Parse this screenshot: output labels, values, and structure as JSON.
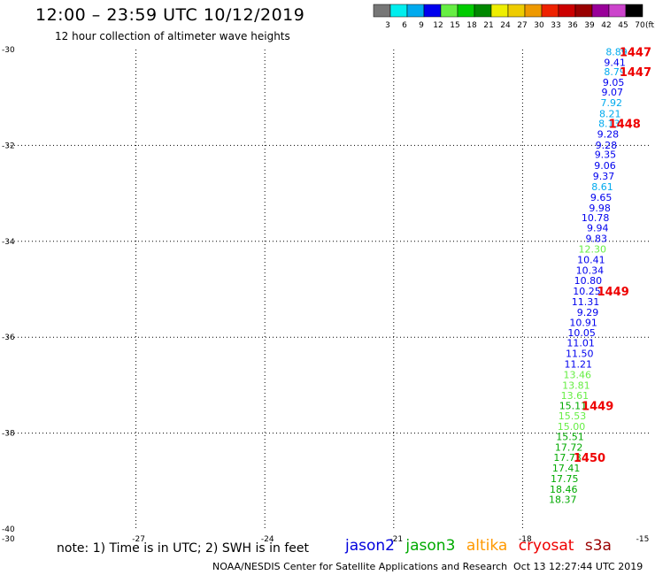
{
  "header": {
    "title": "12:00 – 23:59 UTC 10/12/2019",
    "subtitle": "12 hour collection of altimeter wave heights"
  },
  "colorbar": {
    "labels": [
      "3",
      "6",
      "9",
      "12",
      "15",
      "18",
      "21",
      "24",
      "27",
      "30",
      "33",
      "36",
      "39",
      "42",
      "45",
      "70"
    ],
    "unit": "(ft)",
    "colors": [
      "#777777",
      "#00eeee",
      "#00aaee",
      "#0000ee",
      "#66ee44",
      "#00cc00",
      "#008800",
      "#eeee00",
      "#eecc00",
      "#ee9900",
      "#ee2200",
      "#cc0000",
      "#990000",
      "#990099",
      "#cc44cc",
      "#000000"
    ]
  },
  "note": "note: 1) Time is in UTC; 2) SWH is in feet",
  "legend": [
    {
      "label": "jason2",
      "color": "#0000dd"
    },
    {
      "label": "jason3",
      "color": "#00aa00"
    },
    {
      "label": "altika",
      "color": "#ff9900"
    },
    {
      "label": "cryosat",
      "color": "#ee0000"
    },
    {
      "label": "s3a",
      "color": "#990000"
    }
  ],
  "footer": {
    "credit": "NOAA/NESDIS Center for Satellite Applications and Research",
    "timestamp": "Oct 13 12:27:44 UTC 2019"
  },
  "chart_data": {
    "type": "scatter",
    "title": "12:00 – 23:59 UTC 10/12/2019",
    "subtitle": "12 hour collection of altimeter wave heights",
    "xlim": [
      -30,
      -15
    ],
    "ylim": [
      -40,
      -30
    ],
    "x_ticks": [
      -30,
      -27,
      -24,
      -21,
      -18,
      -15
    ],
    "y_ticks": [
      -30,
      -32,
      -34,
      -36,
      -38,
      -40
    ],
    "grid": true,
    "colors": {
      "c12": "#00aaee",
      "c15": "#0000ee",
      "c18": "#66ee44",
      "c21": "#00aa00",
      "time": "#ee0000"
    },
    "points": [
      {
        "lon": -15.56,
        "lat": -30.05,
        "v": "8.89",
        "c": "c12"
      },
      {
        "lon": -15.6,
        "lat": -30.27,
        "v": "9.41",
        "c": "c15"
      },
      {
        "lon": -15.6,
        "lat": -30.46,
        "v": "8.79",
        "c": "c12"
      },
      {
        "lon": -15.63,
        "lat": -30.68,
        "v": "9.05",
        "c": "c15"
      },
      {
        "lon": -15.66,
        "lat": -30.89,
        "v": "9.07",
        "c": "c15"
      },
      {
        "lon": -15.68,
        "lat": -31.11,
        "v": "7.92",
        "c": "c12"
      },
      {
        "lon": -15.71,
        "lat": -31.34,
        "v": "8.21",
        "c": "c12"
      },
      {
        "lon": -15.73,
        "lat": -31.54,
        "v": "8.13",
        "c": "c12"
      },
      {
        "lon": -15.76,
        "lat": -31.76,
        "v": "9.28",
        "c": "c15"
      },
      {
        "lon": -15.8,
        "lat": -31.99,
        "v": "9.28",
        "c": "c15"
      },
      {
        "lon": -15.82,
        "lat": -32.19,
        "v": "9.35",
        "c": "c15"
      },
      {
        "lon": -15.83,
        "lat": -32.42,
        "v": "9.06",
        "c": "c15"
      },
      {
        "lon": -15.86,
        "lat": -32.64,
        "v": "9.37",
        "c": "c15"
      },
      {
        "lon": -15.89,
        "lat": -32.86,
        "v": "8.61",
        "c": "c12"
      },
      {
        "lon": -15.92,
        "lat": -33.08,
        "v": "9.65",
        "c": "c15"
      },
      {
        "lon": -15.95,
        "lat": -33.3,
        "v": "9.98",
        "c": "c15"
      },
      {
        "lon": -15.98,
        "lat": -33.51,
        "v": "10.78",
        "c": "c15"
      },
      {
        "lon": -16.0,
        "lat": -33.72,
        "v": "9.94",
        "c": "c15"
      },
      {
        "lon": -16.03,
        "lat": -33.94,
        "v": "9.83",
        "c": "c15"
      },
      {
        "lon": -16.05,
        "lat": -34.16,
        "v": "12.30",
        "c": "c18"
      },
      {
        "lon": -16.08,
        "lat": -34.38,
        "v": "10.41",
        "c": "c15"
      },
      {
        "lon": -16.11,
        "lat": -34.6,
        "v": "10.34",
        "c": "c15"
      },
      {
        "lon": -16.15,
        "lat": -34.82,
        "v": "10.80",
        "c": "c15"
      },
      {
        "lon": -16.18,
        "lat": -35.04,
        "v": "10.25",
        "c": "c15"
      },
      {
        "lon": -16.21,
        "lat": -35.26,
        "v": "11.31",
        "c": "c15"
      },
      {
        "lon": -16.23,
        "lat": -35.48,
        "v": "9.29",
        "c": "c15"
      },
      {
        "lon": -16.26,
        "lat": -35.69,
        "v": "10.91",
        "c": "c15"
      },
      {
        "lon": -16.3,
        "lat": -35.9,
        "v": "10.05",
        "c": "c15"
      },
      {
        "lon": -16.32,
        "lat": -36.12,
        "v": "11.01",
        "c": "c15"
      },
      {
        "lon": -16.35,
        "lat": -36.34,
        "v": "11.50",
        "c": "c15"
      },
      {
        "lon": -16.38,
        "lat": -36.56,
        "v": "11.21",
        "c": "c15"
      },
      {
        "lon": -16.4,
        "lat": -36.78,
        "v": "13.46",
        "c": "c18"
      },
      {
        "lon": -16.43,
        "lat": -37.0,
        "v": "13.81",
        "c": "c18"
      },
      {
        "lon": -16.46,
        "lat": -37.21,
        "v": "13.61",
        "c": "c18"
      },
      {
        "lon": -16.5,
        "lat": -37.43,
        "v": "15.11",
        "c": "c21"
      },
      {
        "lon": -16.52,
        "lat": -37.64,
        "v": "15.53",
        "c": "c18"
      },
      {
        "lon": -16.54,
        "lat": -37.86,
        "v": "15.00",
        "c": "c18"
      },
      {
        "lon": -16.57,
        "lat": -38.07,
        "v": "15.51",
        "c": "c21"
      },
      {
        "lon": -16.6,
        "lat": -38.29,
        "v": "17.72",
        "c": "c21"
      },
      {
        "lon": -16.63,
        "lat": -38.51,
        "v": "17.73",
        "c": "c21"
      },
      {
        "lon": -16.66,
        "lat": -38.73,
        "v": "17.41",
        "c": "c21"
      },
      {
        "lon": -16.7,
        "lat": -38.95,
        "v": "17.75",
        "c": "c21"
      },
      {
        "lon": -16.72,
        "lat": -39.17,
        "v": "18.46",
        "c": "c21"
      },
      {
        "lon": -16.74,
        "lat": -39.38,
        "v": "18.37",
        "c": "c21"
      }
    ],
    "times": [
      {
        "lon": -15.0,
        "lat": -30.05,
        "v": "1447"
      },
      {
        "lon": -15.0,
        "lat": -30.46,
        "v": "1447"
      },
      {
        "lon": -15.25,
        "lat": -31.54,
        "v": "1448"
      },
      {
        "lon": -15.52,
        "lat": -35.04,
        "v": "1449"
      },
      {
        "lon": -15.88,
        "lat": -37.43,
        "v": "1449"
      },
      {
        "lon": -16.07,
        "lat": -38.51,
        "v": "1450"
      }
    ]
  }
}
